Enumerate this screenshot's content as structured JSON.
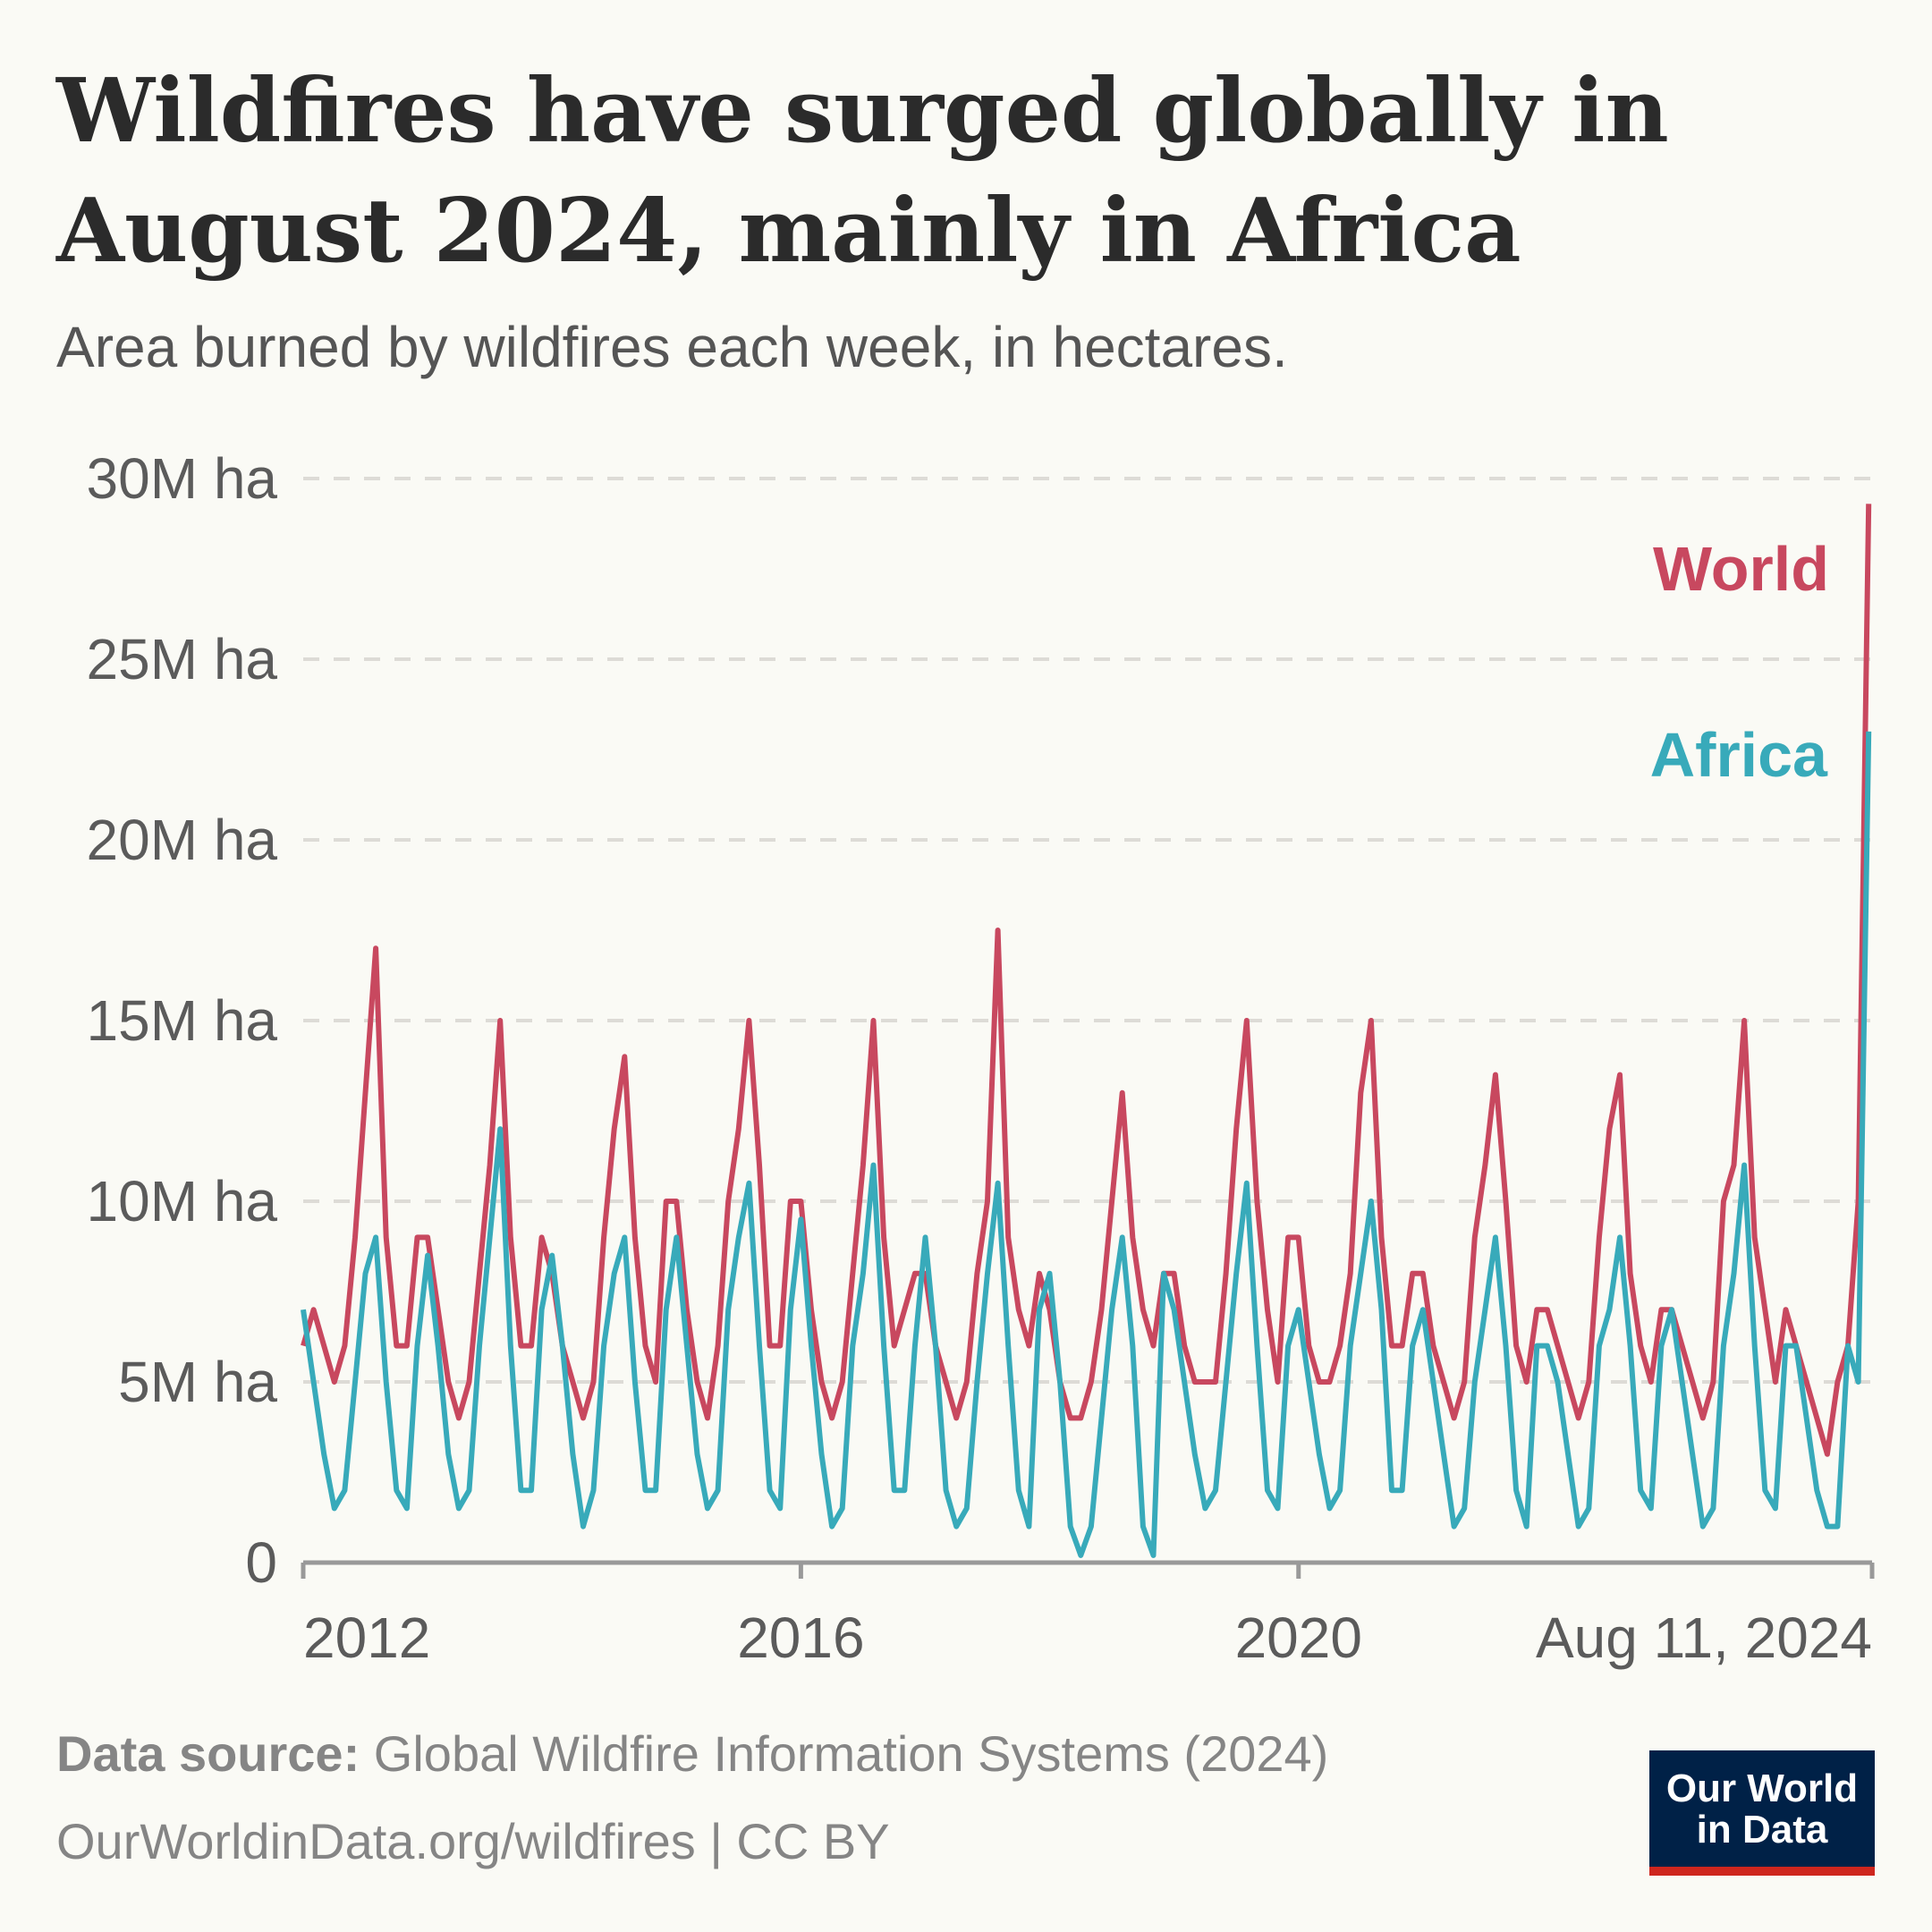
{
  "title_line1": "Wildfires have surged globally in",
  "title_line2": "August 2024, mainly in Africa",
  "subtitle": "Area burned by wildfires each week, in hectares.",
  "footer": {
    "source_label": "Data source:",
    "source_text": " Global Wildfire Information Systems (2024)",
    "url_license": "OurWorldinData.org/wildfires | CC BY"
  },
  "logo": {
    "line1": "Our World",
    "line2": "in Data"
  },
  "colors": {
    "world": "#c8485f",
    "africa": "#38aaba",
    "logo_bg": "#002147",
    "logo_bar": "#ce261e"
  },
  "chart_data": {
    "type": "line",
    "title": "Wildfires have surged globally in August 2024, mainly in Africa",
    "ylabel": "Area burned (hectares)",
    "ylim": [
      0,
      30
    ],
    "y_unit": "million hectares",
    "yticks": [
      0,
      5,
      10,
      15,
      20,
      25,
      30
    ],
    "ytick_labels": [
      "0",
      "5M ha",
      "10M ha",
      "15M ha",
      "20M ha",
      "25M ha",
      "30M ha"
    ],
    "xlim": [
      2012.0,
      2024.61
    ],
    "xticks": [
      2012,
      2016,
      2020,
      2024.61
    ],
    "xtick_labels": [
      "2012",
      "2016",
      "2020",
      "Aug 11, 2024"
    ],
    "x_start": 2012.0,
    "x_step_years": 0.08333,
    "grid": true,
    "legend": "inline-right",
    "series": [
      {
        "name": "World",
        "values": [
          6,
          7,
          6,
          5,
          6,
          9,
          13,
          17,
          9,
          6,
          6,
          9,
          9,
          7,
          5,
          4,
          5,
          8,
          11,
          15,
          9,
          6,
          6,
          9,
          8,
          6,
          5,
          4,
          5,
          9,
          12,
          14,
          9,
          6,
          5,
          10,
          10,
          7,
          5,
          4,
          6,
          10,
          12,
          15,
          11,
          6,
          6,
          10,
          10,
          7,
          5,
          4,
          5,
          8,
          11,
          15,
          9,
          6,
          7,
          8,
          8,
          6,
          5,
          4,
          5,
          8,
          10,
          17.5,
          9,
          7,
          6,
          8,
          7,
          5,
          4,
          4,
          5,
          7,
          10,
          13,
          9,
          7,
          6,
          8,
          8,
          6,
          5,
          5,
          5,
          8,
          12,
          15,
          10,
          7,
          5,
          9,
          9,
          6,
          5,
          5,
          6,
          8,
          13,
          15,
          9,
          6,
          6,
          8,
          8,
          6,
          5,
          4,
          5,
          9,
          11,
          13.5,
          10,
          6,
          5,
          7,
          7,
          6,
          5,
          4,
          5,
          9,
          12,
          13.5,
          8,
          6,
          5,
          7,
          7,
          6,
          5,
          4,
          5,
          10,
          11,
          15,
          9,
          7,
          5,
          7,
          6,
          5,
          4,
          3,
          5,
          6,
          10,
          29.3
        ]
      },
      {
        "name": "Africa",
        "values": [
          7,
          5,
          3,
          1.5,
          2,
          5,
          8,
          9,
          5,
          2,
          1.5,
          6,
          8.5,
          6,
          3,
          1.5,
          2,
          6,
          9,
          12,
          6,
          2,
          2,
          7,
          8.5,
          6,
          3,
          1,
          2,
          6,
          8,
          9,
          5,
          2,
          2,
          7,
          9,
          6,
          3,
          1.5,
          2,
          7,
          9,
          10.5,
          6,
          2,
          1.5,
          7,
          9.5,
          6,
          3,
          1,
          1.5,
          6,
          8,
          11,
          6,
          2,
          2,
          6,
          9,
          6,
          2,
          1,
          1.5,
          5,
          8,
          10.5,
          6,
          2,
          1,
          7,
          8,
          5,
          1,
          0.2,
          1,
          4,
          7,
          9,
          6,
          1,
          0.2,
          8,
          7,
          5,
          3,
          1.5,
          2,
          5,
          8,
          10.5,
          6,
          2,
          1.5,
          6,
          7,
          5,
          3,
          1.5,
          2,
          6,
          8,
          10,
          7,
          2,
          2,
          6,
          7,
          5,
          3,
          1,
          1.5,
          5,
          7,
          9,
          6,
          2,
          1,
          6,
          6,
          5,
          3,
          1,
          1.5,
          6,
          7,
          9,
          6,
          2,
          1.5,
          6,
          7,
          5,
          3,
          1,
          1.5,
          6,
          8,
          11,
          6,
          2,
          1.5,
          6,
          6,
          4,
          2,
          1,
          1,
          6,
          5,
          23
        ]
      }
    ]
  }
}
